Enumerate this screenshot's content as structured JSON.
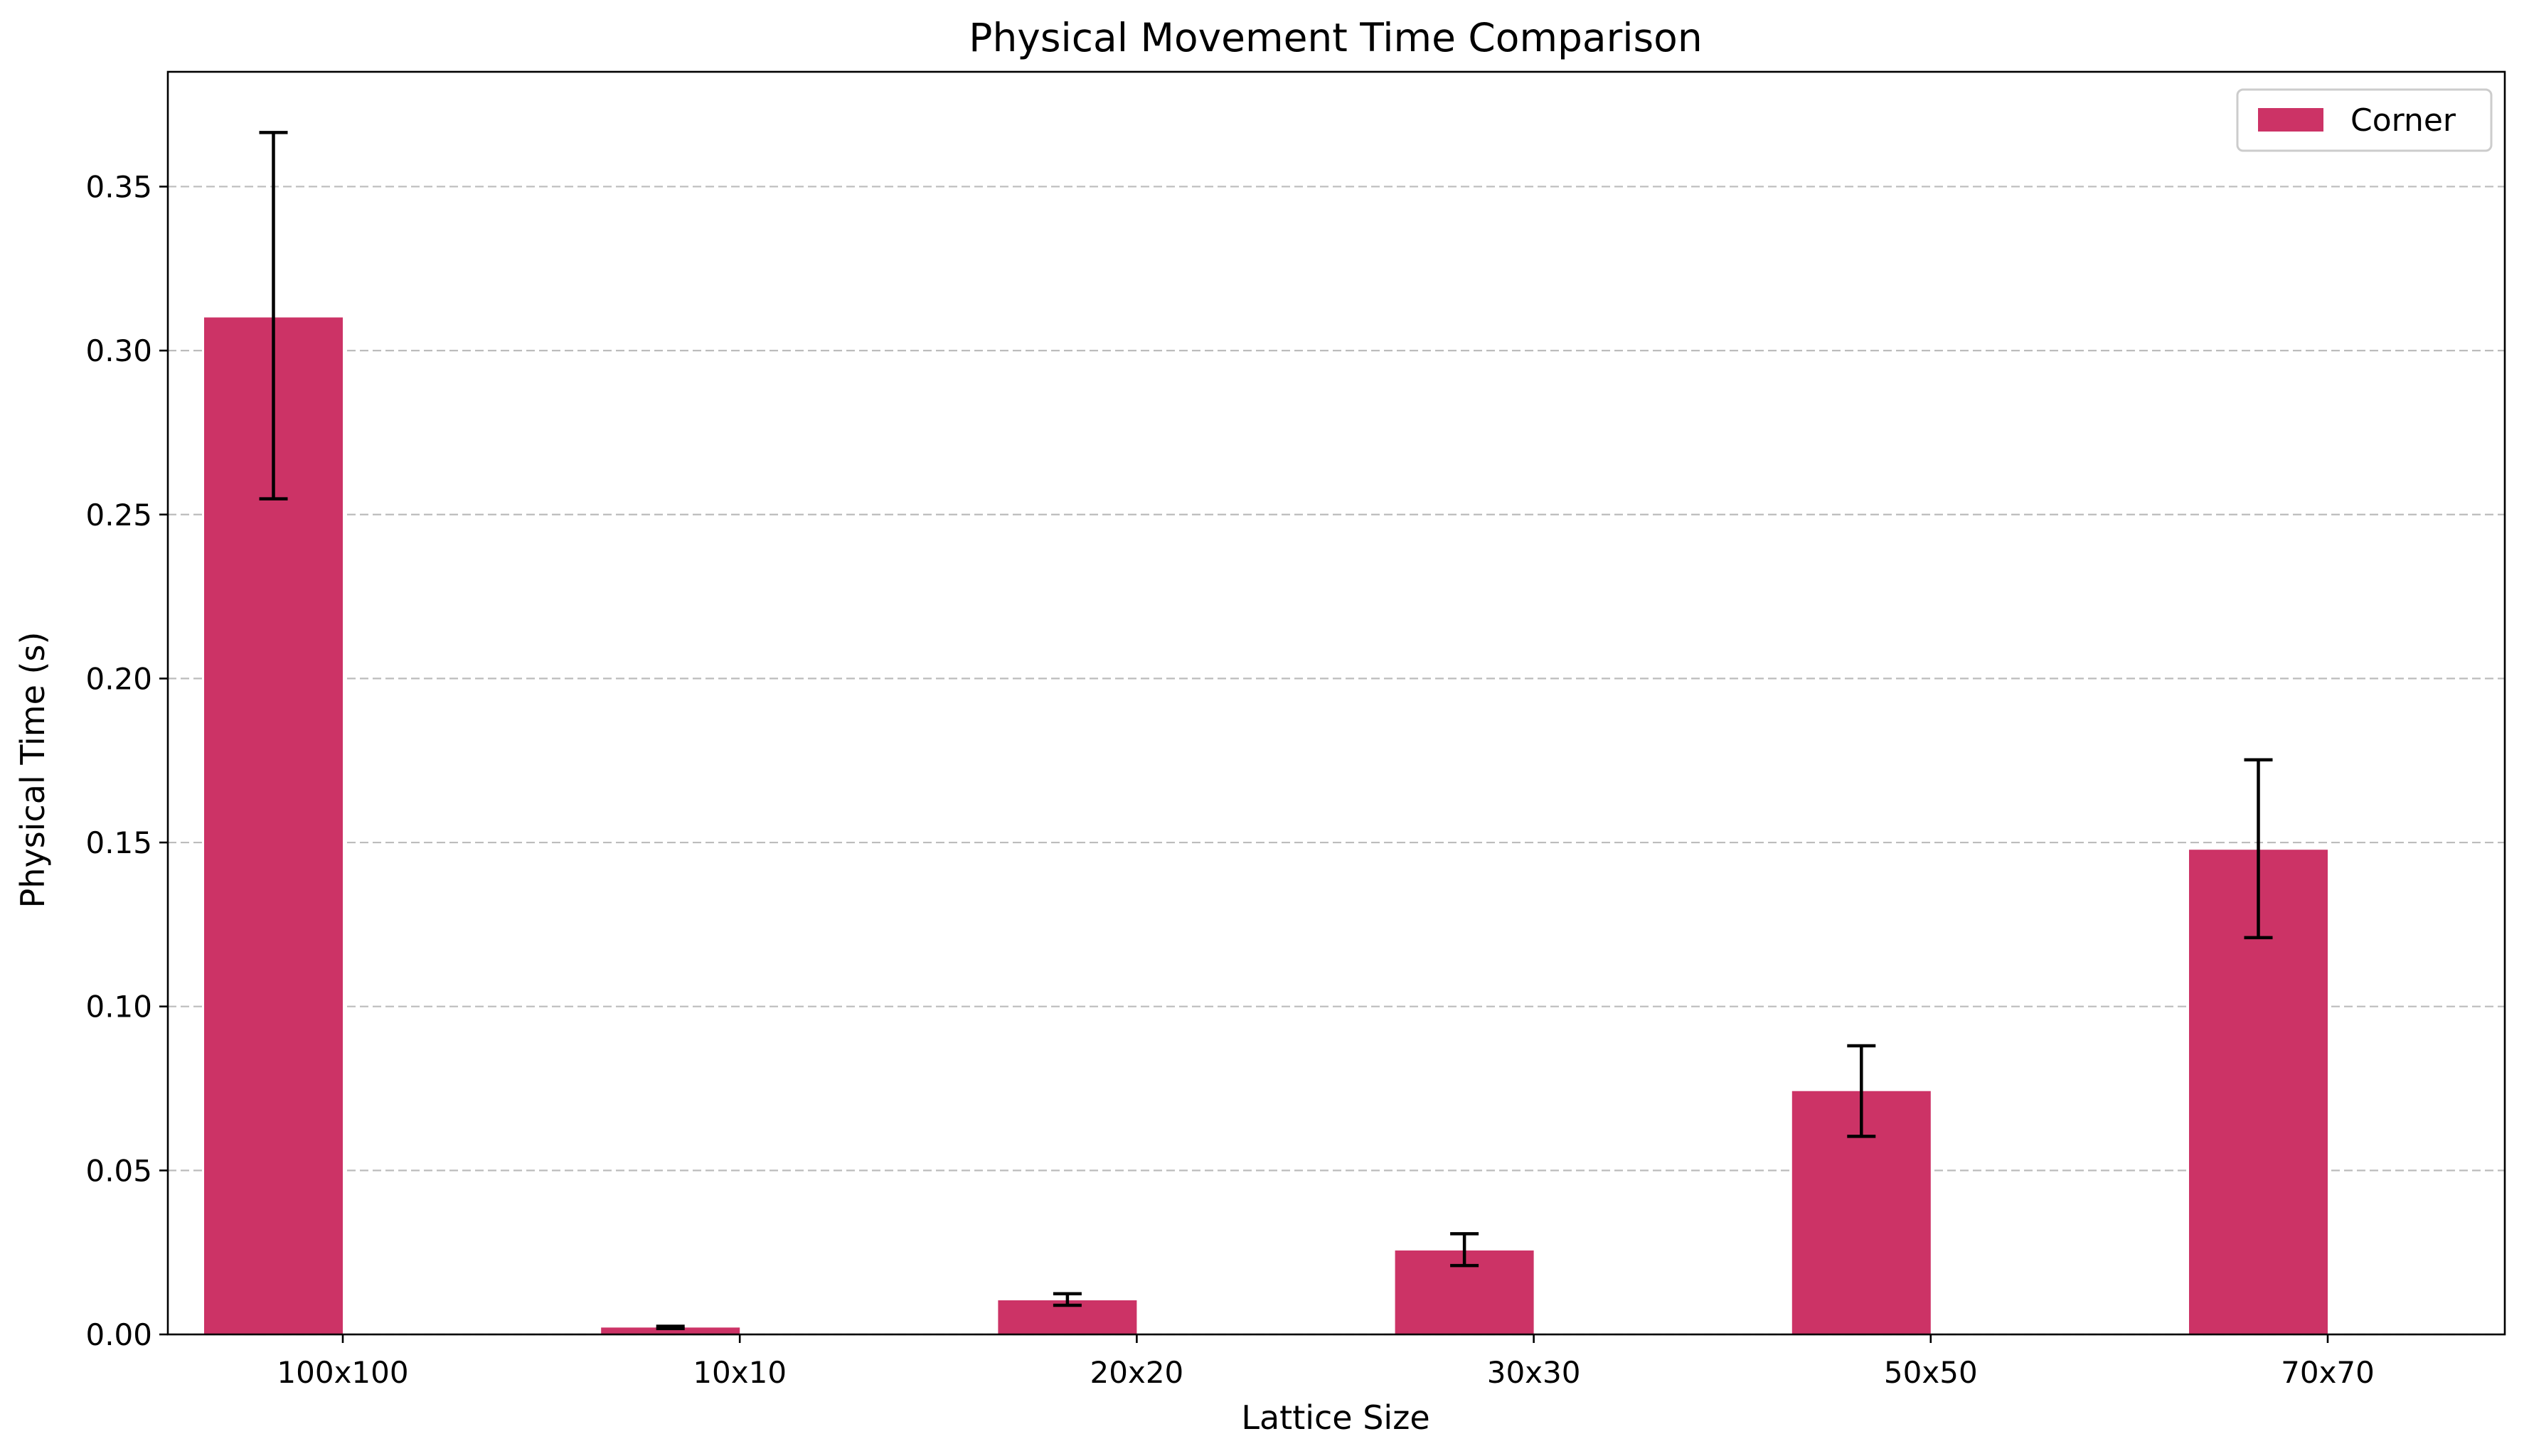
{
  "chart_data": {
    "type": "bar",
    "title": "Physical Movement Time Comparison",
    "xlabel": "Lattice Size",
    "ylabel": "Physical Time (s)",
    "categories": [
      "100x100",
      "10x10",
      "20x20",
      "30x30",
      "50x50",
      "70x70"
    ],
    "series": [
      {
        "name": "Corner",
        "color": "#cc3366",
        "values": [
          0.3101,
          0.0021,
          0.0104,
          0.0256,
          0.0742,
          0.1478
        ],
        "error_low": [
          0.2548,
          0.0018,
          0.0089,
          0.021,
          0.0604,
          0.121
        ],
        "error_high": [
          0.3665,
          0.0025,
          0.0124,
          0.0307,
          0.088,
          0.1752
        ]
      }
    ],
    "ylim": [
      0,
      0.385
    ],
    "yticks": [
      0.0,
      0.05,
      0.1,
      0.15,
      0.2,
      0.25,
      0.3,
      0.35
    ],
    "ytick_labels": [
      "0.00",
      "0.05",
      "0.10",
      "0.15",
      "0.20",
      "0.25",
      "0.30",
      "0.35"
    ],
    "grid": "y-dashed",
    "legend_position": "top-right"
  }
}
